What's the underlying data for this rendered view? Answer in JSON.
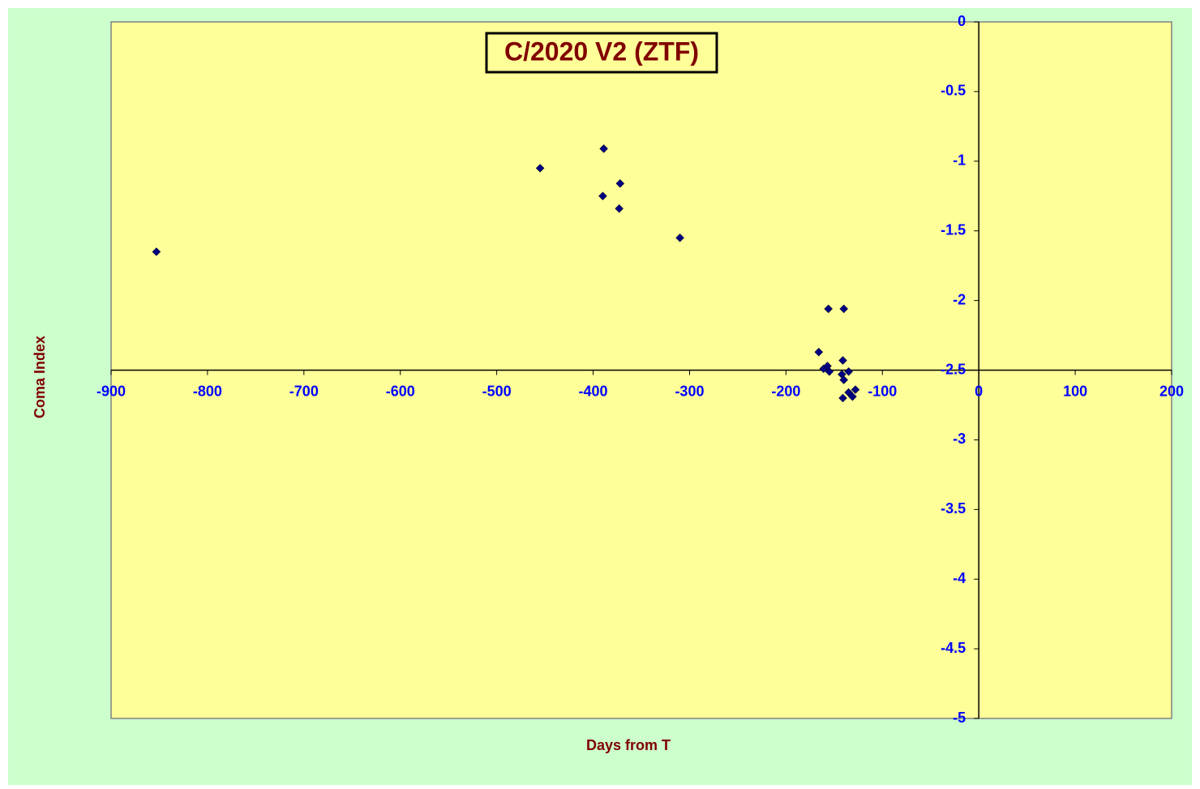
{
  "chart_data": {
    "type": "scatter",
    "title": "C/2020 V2 (ZTF)",
    "x_label": "Days from T",
    "y_label": "Coma Index",
    "xlim": [
      -900,
      200
    ],
    "ylim": [
      -5,
      0
    ],
    "xticks": [
      -900,
      -800,
      -700,
      -600,
      -500,
      -400,
      -300,
      -200,
      -100,
      0,
      100,
      200
    ],
    "yticks": [
      0,
      -0.5,
      -1,
      -1.5,
      -2,
      -2.5,
      -3,
      -3.5,
      -4,
      -4.5,
      -5
    ],
    "x_axis_crosses_at": -2.5,
    "y_axis_crosses_at": 0,
    "series": [
      {
        "color": "#000080",
        "x": [
          -853,
          -455,
          -389,
          -390,
          -372,
          -373,
          -310,
          -156,
          -140,
          -166,
          -141,
          -161,
          -157,
          -155,
          -135,
          -142,
          -140,
          -135,
          -128,
          -131,
          -141
        ],
        "values": [
          -1.65,
          -1.05,
          -0.91,
          -1.25,
          -1.16,
          -1.34,
          -1.55,
          -2.06,
          -2.06,
          -2.37,
          -2.43,
          -2.49,
          -2.47,
          -2.51,
          -2.51,
          -2.53,
          -2.57,
          -2.66,
          -2.64,
          -2.69,
          -2.7
        ]
      }
    ]
  }
}
